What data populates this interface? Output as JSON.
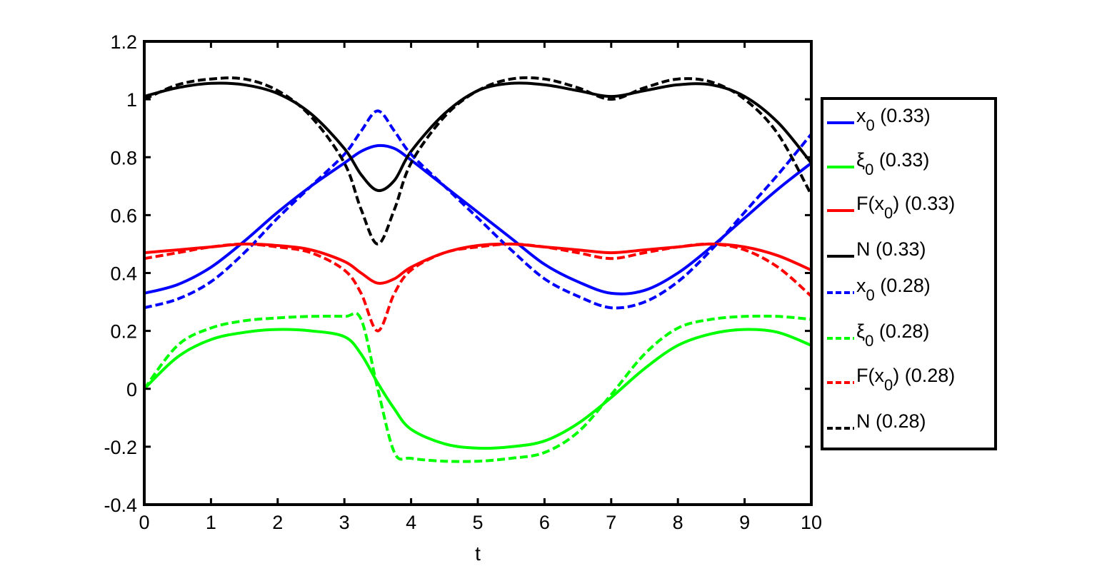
{
  "chart_data": {
    "type": "line",
    "title": "",
    "xlabel": "t",
    "ylabel": "",
    "xlim": [
      0,
      10
    ],
    "ylim": [
      -0.4,
      1.2
    ],
    "x_ticks": [
      "0",
      "1",
      "2",
      "3",
      "4",
      "5",
      "6",
      "7",
      "8",
      "9",
      "10"
    ],
    "y_ticks": [
      "-0.4",
      "-0.2",
      "0",
      "0.2",
      "0.4",
      "0.6",
      "0.8",
      "1",
      "1.2"
    ],
    "grid": false,
    "legend_position": "right",
    "x": [
      0,
      0.5,
      1,
      1.5,
      2,
      2.5,
      3,
      3.25,
      3.5,
      3.75,
      4,
      4.5,
      5,
      5.5,
      6,
      6.5,
      7,
      7.5,
      8,
      8.5,
      9,
      9.5,
      10
    ],
    "series": [
      {
        "name": "x",
        "subscript": "0",
        "suffix": " (0.33)",
        "color": "#0000ff",
        "dashed": false,
        "values": [
          0.33,
          0.36,
          0.42,
          0.51,
          0.61,
          0.7,
          0.78,
          0.82,
          0.84,
          0.83,
          0.79,
          0.7,
          0.61,
          0.52,
          0.43,
          0.37,
          0.33,
          0.34,
          0.4,
          0.49,
          0.59,
          0.69,
          0.78
        ]
      },
      {
        "name": "ξ",
        "subscript": "0",
        "suffix": " (0.33)",
        "color": "#00ff00",
        "dashed": false,
        "values": [
          0.0,
          0.11,
          0.17,
          0.195,
          0.205,
          0.2,
          0.18,
          0.12,
          0.02,
          -0.07,
          -0.14,
          -0.19,
          -0.205,
          -0.2,
          -0.18,
          -0.12,
          -0.03,
          0.07,
          0.15,
          0.19,
          0.205,
          0.195,
          0.15
        ]
      },
      {
        "name": "F(x",
        "subscript": "0",
        "suffix": ") (0.33)",
        "color": "#ff0000",
        "dashed": false,
        "values": [
          0.47,
          0.48,
          0.49,
          0.5,
          0.495,
          0.48,
          0.44,
          0.4,
          0.365,
          0.38,
          0.42,
          0.47,
          0.495,
          0.5,
          0.49,
          0.48,
          0.47,
          0.48,
          0.49,
          0.5,
          0.49,
          0.46,
          0.41
        ]
      },
      {
        "name": "N",
        "subscript": "",
        "suffix": " (0.33)",
        "color": "#000000",
        "dashed": false,
        "values": [
          1.01,
          1.04,
          1.055,
          1.05,
          1.02,
          0.95,
          0.83,
          0.74,
          0.685,
          0.72,
          0.82,
          0.95,
          1.03,
          1.055,
          1.05,
          1.03,
          1.01,
          1.03,
          1.05,
          1.05,
          1.01,
          0.92,
          0.78
        ]
      },
      {
        "name": "x",
        "subscript": "0",
        "suffix": " (0.28)",
        "color": "#0000ff",
        "dashed": true,
        "values": [
          0.28,
          0.31,
          0.37,
          0.47,
          0.59,
          0.7,
          0.81,
          0.89,
          0.96,
          0.89,
          0.81,
          0.7,
          0.59,
          0.48,
          0.38,
          0.32,
          0.28,
          0.3,
          0.37,
          0.48,
          0.61,
          0.74,
          0.88
        ]
      },
      {
        "name": "ξ",
        "subscript": "0",
        "suffix": " (0.28)",
        "color": "#00ff00",
        "dashed": true,
        "values": [
          0.0,
          0.15,
          0.21,
          0.235,
          0.245,
          0.25,
          0.25,
          0.24,
          0.0,
          -0.22,
          -0.24,
          -0.25,
          -0.25,
          -0.24,
          -0.22,
          -0.15,
          -0.02,
          0.12,
          0.21,
          0.24,
          0.25,
          0.25,
          0.24
        ]
      },
      {
        "name": "F(x",
        "subscript": "0",
        "suffix": ") (0.28)",
        "color": "#ff0000",
        "dashed": true,
        "values": [
          0.45,
          0.47,
          0.49,
          0.5,
          0.49,
          0.47,
          0.41,
          0.33,
          0.2,
          0.33,
          0.41,
          0.47,
          0.49,
          0.5,
          0.49,
          0.47,
          0.45,
          0.47,
          0.49,
          0.5,
          0.48,
          0.42,
          0.32
        ]
      },
      {
        "name": "N",
        "subscript": "",
        "suffix": " (0.28)",
        "color": "#000000",
        "dashed": true,
        "values": [
          1.0,
          1.05,
          1.07,
          1.07,
          1.03,
          0.94,
          0.78,
          0.62,
          0.5,
          0.62,
          0.78,
          0.94,
          1.03,
          1.07,
          1.07,
          1.04,
          1.0,
          1.04,
          1.07,
          1.06,
          1.0,
          0.88,
          0.67
        ]
      }
    ]
  }
}
